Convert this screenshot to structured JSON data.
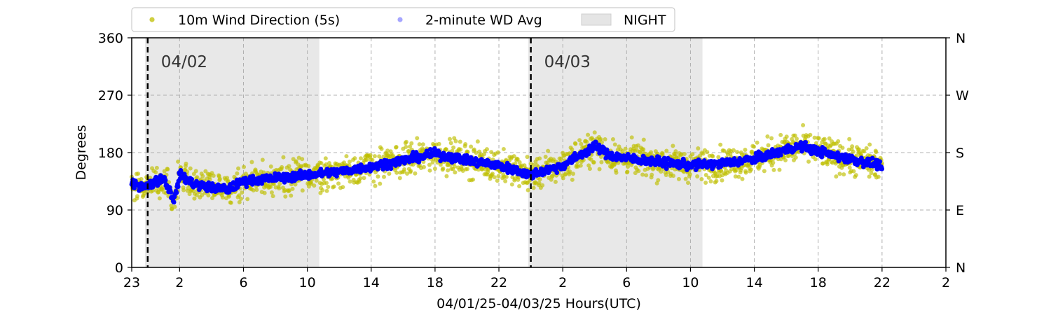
{
  "chart_data": {
    "type": "scatter",
    "xlabel": "04/01/25-04/03/25  Hours(UTC)",
    "ylabel": "Degrees",
    "x_start": "04/01/25 23:00 UTC",
    "x_range_hours": [
      0,
      51
    ],
    "x_tick_labels": [
      "23",
      "2",
      "6",
      "10",
      "14",
      "18",
      "22",
      "2",
      "6",
      "10",
      "14",
      "18",
      "22",
      "2"
    ],
    "ylim": [
      0,
      360
    ],
    "y_ticks": [
      0,
      90,
      180,
      270,
      360
    ],
    "y_tick_labels": [
      "0",
      "90",
      "180",
      "270",
      "360"
    ],
    "y2_tick_labels": [
      "N",
      "E",
      "S",
      "W",
      "N"
    ],
    "grid": true,
    "legend_position": "top-left, above plot",
    "legend": [
      {
        "label": "10m Wind Direction (5s)",
        "color": "#bfbf00",
        "marker": "dot"
      },
      {
        "label": "2-minute WD Avg",
        "color": "#0000ff",
        "marker": "dot"
      },
      {
        "label": "NIGHT",
        "color": "#e5e5e5",
        "marker": "patch"
      }
    ],
    "night_periods": [
      {
        "start": "04/01/25 23:50 UTC",
        "end": "04/02/25 10:45 UTC"
      },
      {
        "start": "04/02/25 23:50 UTC",
        "end": "04/03/25 10:45 UTC"
      }
    ],
    "day_markers": [
      {
        "at": "04/02/25 00:00 UTC",
        "label": "04/02"
      },
      {
        "at": "04/03/25 00:00 UTC",
        "label": "04/03"
      }
    ],
    "data_end": "04/03/25 22:00 UTC",
    "series": [
      {
        "name": "10m Wind Direction (5s)",
        "color": "#bfbf00",
        "spread_deg": 22,
        "trend_same_as": "2-minute WD Avg"
      },
      {
        "name": "2-minute WD Avg",
        "color": "#0000ff",
        "time_utc": [
          "04/01/25 23:00",
          "04/02/25 00:00",
          "04/02/25 00:30",
          "04/02/25 01:00",
          "04/02/25 01:40",
          "04/02/25 02:00",
          "04/02/25 03:00",
          "04/02/25 04:00",
          "04/02/25 05:00",
          "04/02/25 06:00",
          "04/02/25 08:00",
          "04/02/25 10:00",
          "04/02/25 12:00",
          "04/02/25 14:00",
          "04/02/25 16:00",
          "04/02/25 18:00",
          "04/02/25 20:00",
          "04/02/25 22:00",
          "04/03/25 00:00",
          "04/03/25 02:00",
          "04/03/25 04:00",
          "04/03/25 05:00",
          "04/03/25 07:00",
          "04/03/25 10:00",
          "04/03/25 12:00",
          "04/03/25 14:00",
          "04/03/25 16:00",
          "04/03/25 17:00",
          "04/03/25 19:00",
          "04/03/25 21:00",
          "04/03/25 22:00"
        ],
        "degrees": [
          130,
          128,
          135,
          140,
          105,
          145,
          130,
          125,
          122,
          135,
          140,
          145,
          150,
          158,
          168,
          178,
          168,
          160,
          145,
          160,
          190,
          175,
          168,
          160,
          163,
          170,
          185,
          190,
          175,
          165,
          160
        ]
      }
    ]
  }
}
